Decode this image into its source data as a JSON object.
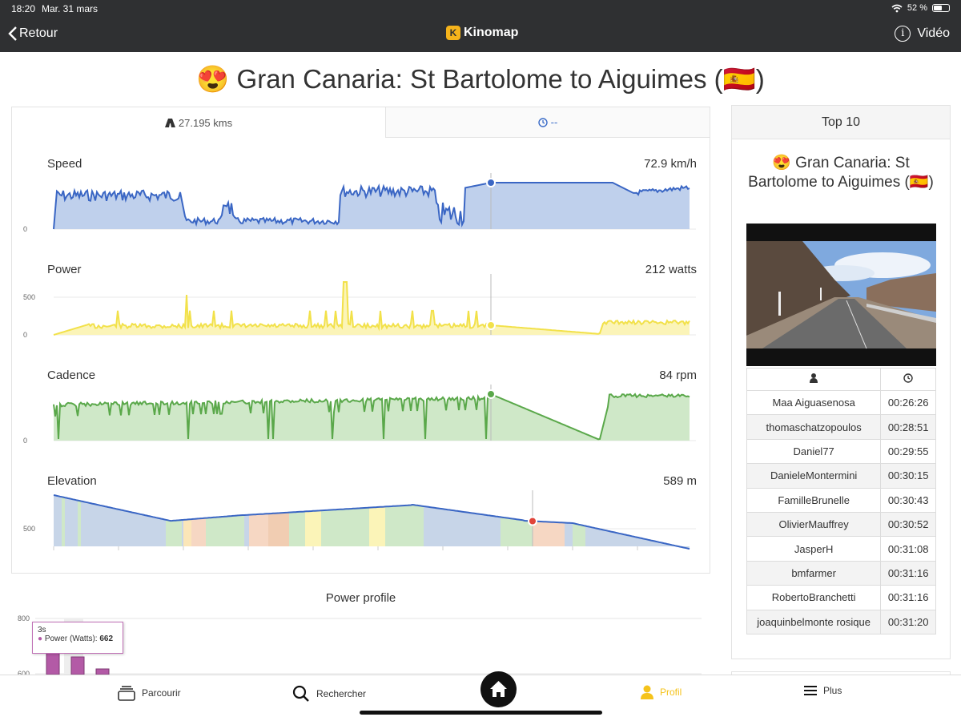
{
  "status_bar": {
    "time": "18:20",
    "date": "Mar. 31 mars",
    "battery": "52 %"
  },
  "nav": {
    "back_label": "Retour",
    "brand": "Kinomap",
    "video_label": "Vidéo",
    "icons": [
      "chevron-left-icon",
      "kinomap-logo",
      "info-icon"
    ]
  },
  "route_title": "😍 Gran Canaria: St Bartolome to Aiguimes (🇪🇸)",
  "tabs": [
    {
      "label": "27.195 kms",
      "icon": "road-icon",
      "active": true
    },
    {
      "label": "--",
      "icon": "clock-icon",
      "active": false
    }
  ],
  "charts": [
    {
      "name": "Speed",
      "value": "72.9 km/h",
      "color": "#3a66c4",
      "fill": "#bfd0ec",
      "yticks": [
        "0"
      ]
    },
    {
      "name": "Power",
      "value": "212 watts",
      "color": "#f2e14a",
      "fill": "#fbf4b8",
      "yticks": [
        "500",
        "0"
      ]
    },
    {
      "name": "Cadence",
      "value": "84 rpm",
      "color": "#5aa84a",
      "fill": "#cfe8c8",
      "yticks": [
        "0"
      ]
    },
    {
      "name": "Elevation",
      "value": "589 m",
      "color": "#3a66c4",
      "fill": "#c7d5e8",
      "yticks": [
        "500"
      ]
    }
  ],
  "power_profile": {
    "title": "Power profile",
    "yticks": [
      "800",
      "600"
    ],
    "tooltip": {
      "duration": "3s",
      "series": "Power (Watts):",
      "value": "662"
    },
    "bar_color": "#b35aa6"
  },
  "top10": {
    "header": "Top 10",
    "route_name": "😍 Gran Canaria: St Bartolome to Aiguimes (🇪🇸)",
    "columns": [
      "user-icon",
      "clock-icon"
    ],
    "rows": [
      {
        "name": "Maa Aiguasenosa",
        "time": "00:26:26"
      },
      {
        "name": "thomaschatzopoulos",
        "time": "00:28:51"
      },
      {
        "name": "Daniel77",
        "time": "00:29:55"
      },
      {
        "name": "DanieleMontermini",
        "time": "00:30:15"
      },
      {
        "name": "FamilleBrunelle",
        "time": "00:30:43"
      },
      {
        "name": "OlivierMauffrey",
        "time": "00:30:52"
      },
      {
        "name": "JasperH",
        "time": "00:31:08"
      },
      {
        "name": "bmfarmer",
        "time": "00:31:16"
      },
      {
        "name": "RobertoBranchetti",
        "time": "00:31:16"
      },
      {
        "name": "joaquinbelmonte rosique",
        "time": "00:31:20"
      }
    ]
  },
  "bottom_nav": [
    {
      "label": "Parcourir",
      "icon": "browse-icon",
      "active": false
    },
    {
      "label": "Rechercher",
      "icon": "search-icon",
      "active": false
    },
    {
      "label": "",
      "icon": "home-icon",
      "active": false
    },
    {
      "label": "Profil",
      "icon": "user-icon",
      "active": true
    },
    {
      "label": "Plus",
      "icon": "menu-icon",
      "active": false
    }
  ]
}
